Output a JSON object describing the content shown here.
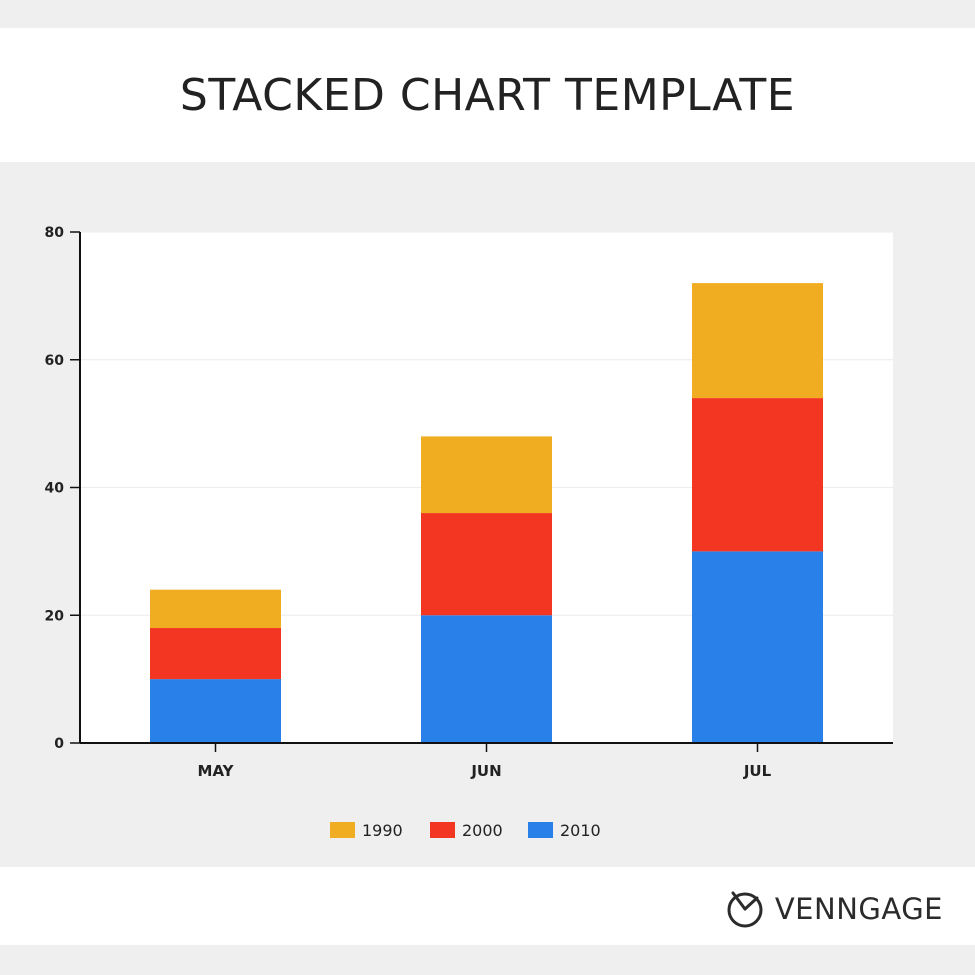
{
  "page": {
    "title": "STACKED CHART TEMPLATE"
  },
  "brand": {
    "name": "VENNGAGE",
    "icon": "venngage-logo-icon"
  },
  "chart_data": {
    "type": "bar",
    "stacked": true,
    "categories": [
      "MAY",
      "JUN",
      "JUL"
    ],
    "series": [
      {
        "name": "2010",
        "color": "#2880e8",
        "values": [
          10,
          20,
          30
        ]
      },
      {
        "name": "2000",
        "color": "#f33622",
        "values": [
          8,
          16,
          24
        ]
      },
      {
        "name": "1990",
        "color": "#f1ad22",
        "values": [
          6,
          12,
          18
        ]
      }
    ],
    "legend_order": [
      "1990",
      "2000",
      "2010"
    ],
    "ylim": [
      0,
      80
    ],
    "yticks": [
      0,
      20,
      40,
      60,
      80
    ],
    "grid": true,
    "legend_position": "bottom"
  }
}
